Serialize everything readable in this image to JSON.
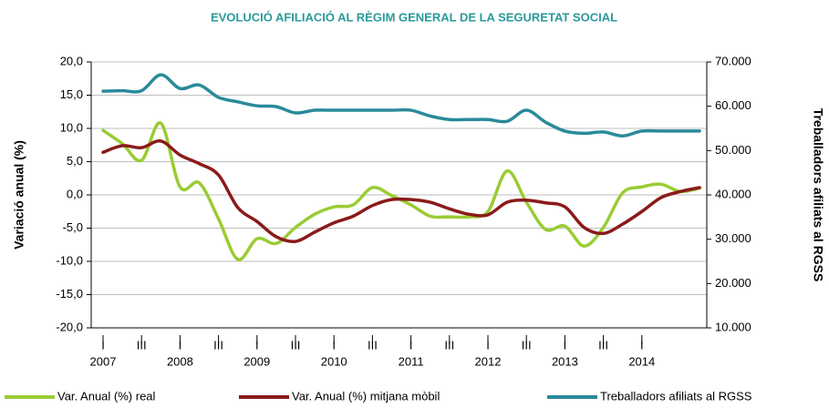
{
  "chart_data": {
    "type": "line",
    "title": "EVOLUCIÓ AFILIACIÓ AL RÈGIM GENERAL DE LA SEGURETAT SOCIAL",
    "y_label": "Variació anual (%)",
    "y2_label": "Treballadors afiliats al RGSS",
    "categories": [
      "I",
      null,
      "III",
      null,
      "I",
      null,
      "III",
      null,
      "I",
      null,
      "III",
      null,
      "I",
      null,
      "III",
      null,
      "I",
      null,
      "III",
      null,
      "I",
      null,
      "III",
      null,
      "I",
      null,
      "III",
      null,
      "I",
      null,
      null,
      null
    ],
    "x_groups": [
      "2007",
      "2008",
      "2009",
      "2010",
      "2011",
      "2012",
      "2013",
      "2014"
    ],
    "ylim": [
      -20,
      20
    ],
    "yticks": [
      {
        "value": 20,
        "label": "20,0"
      },
      {
        "value": 15,
        "label": "15,0"
      },
      {
        "value": 10,
        "label": "10,0"
      },
      {
        "value": 5,
        "label": "5,0"
      },
      {
        "value": 0,
        "label": "0,0"
      },
      {
        "value": -5,
        "label": "-5,0"
      },
      {
        "value": -10,
        "label": "-10,0"
      },
      {
        "value": -15,
        "label": "-15,0"
      },
      {
        "value": -20,
        "label": "-20,0"
      }
    ],
    "y2lim": [
      10000,
      70000
    ],
    "y2ticks": [
      {
        "value": 70000,
        "label": "70.000"
      },
      {
        "value": 60000,
        "label": "60.000"
      },
      {
        "value": 50000,
        "label": "50.000"
      },
      {
        "value": 40000,
        "label": "40.000"
      },
      {
        "value": 30000,
        "label": "30.000"
      },
      {
        "value": 20000,
        "label": "20.000"
      },
      {
        "value": 10000,
        "label": "10.000"
      }
    ],
    "grid": true,
    "legend": "bottom",
    "series": [
      {
        "name": "Var. Anual (%) real",
        "color": "#99cc33",
        "values": [
          9.7,
          7.7,
          5.2,
          10.8,
          1.2,
          1.8,
          -3.6,
          -9.7,
          -6.6,
          -7.3,
          -4.9,
          -2.9,
          -1.8,
          -1.5,
          1.1,
          -0.1,
          -1.5,
          -3.2,
          -3.3,
          -3.3,
          -2.5,
          3.6,
          -1.1,
          -5.2,
          -4.7,
          -7.7,
          -4.9,
          0.3,
          1.2,
          1.6,
          0.5,
          1.0
        ]
      },
      {
        "name": "Var. Anual (%) mitjana mòbil",
        "color": "#8b1a1a",
        "values": [
          6.4,
          7.4,
          7.1,
          8.1,
          6.0,
          4.7,
          3.0,
          -1.9,
          -4.0,
          -6.3,
          -7.0,
          -5.6,
          -4.2,
          -3.2,
          -1.6,
          -0.7,
          -0.7,
          -1.1,
          -2.1,
          -2.9,
          -3.0,
          -1.1,
          -0.8,
          -1.2,
          -1.8,
          -4.9,
          -5.8,
          -4.4,
          -2.5,
          -0.4,
          0.5,
          1.1
        ]
      },
      {
        "name": "Treballadors afiliats al RGSS",
        "color": "#2a8a9a",
        "axis": "y2",
        "values": [
          63400,
          63500,
          63500,
          67100,
          64000,
          64800,
          62000,
          61000,
          60100,
          59900,
          58500,
          59100,
          59100,
          59100,
          59100,
          59100,
          59100,
          57800,
          57000,
          57000,
          57000,
          56600,
          59100,
          56400,
          54400,
          53900,
          54200,
          53300,
          54400,
          54400,
          54400,
          54400
        ]
      }
    ]
  }
}
